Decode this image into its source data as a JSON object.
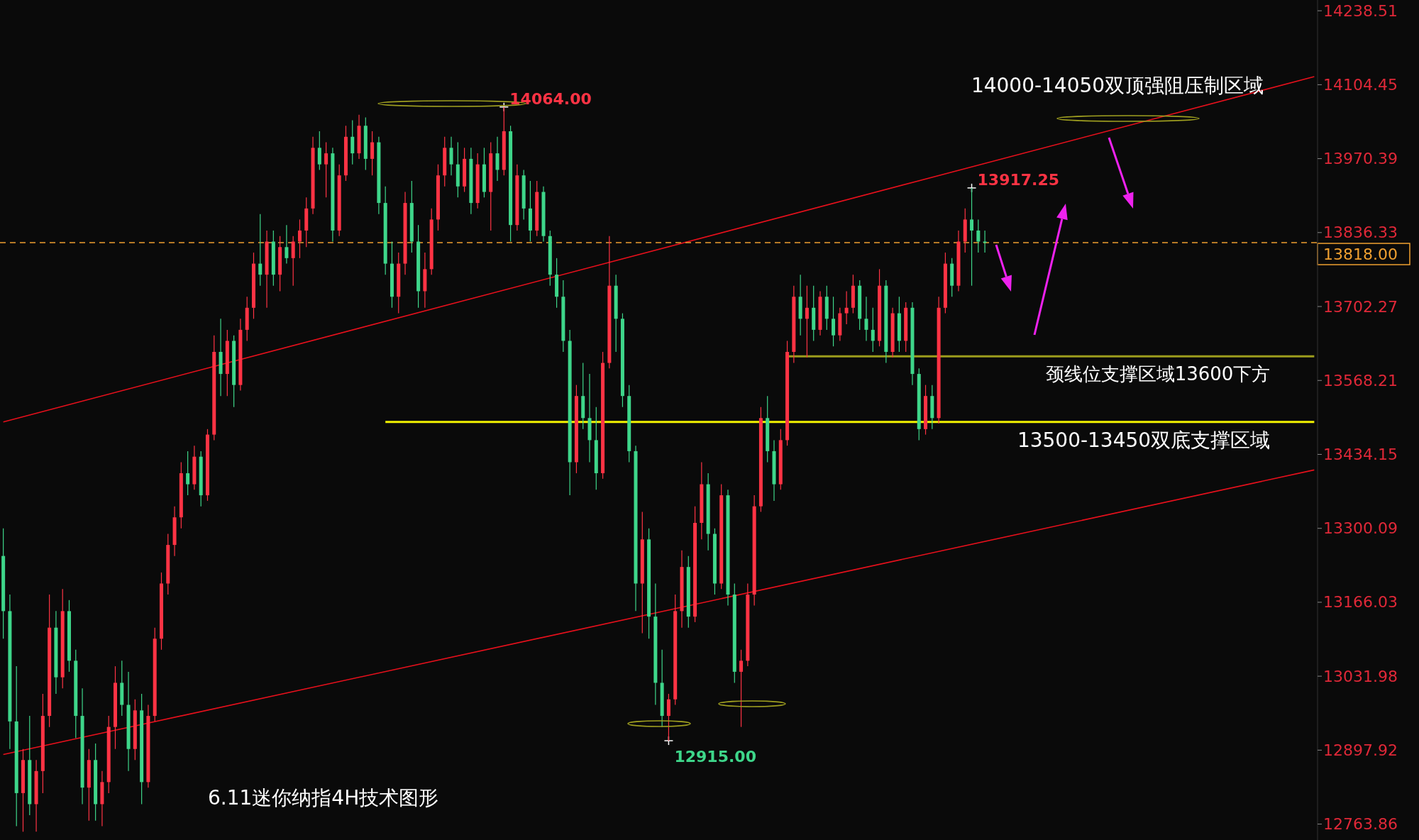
{
  "chart_data": {
    "type": "candlestick",
    "categories": [
      null,
      null,
      null,
      null,
      null,
      null,
      null,
      null,
      null,
      null,
      null,
      null,
      null,
      null,
      null,
      null,
      null,
      null,
      null,
      null,
      null,
      null,
      null,
      null,
      null,
      null,
      null,
      null,
      null,
      null,
      null,
      null,
      null,
      null,
      null,
      null,
      null,
      null,
      null,
      null,
      null,
      null,
      null,
      null,
      null,
      null,
      null,
      null,
      null,
      null,
      null,
      null,
      null,
      null,
      null,
      null,
      null,
      null,
      null,
      null,
      null,
      null,
      null,
      null,
      null,
      null,
      null,
      null,
      null,
      null,
      null,
      null,
      null,
      null,
      null,
      null,
      null,
      null,
      null,
      null,
      null,
      null,
      null,
      null,
      null,
      null,
      null,
      null,
      null,
      null,
      null,
      null,
      null,
      null,
      null,
      null,
      null,
      null,
      null,
      null,
      null,
      null,
      null,
      null,
      null,
      null,
      null,
      null,
      null,
      null,
      null,
      null,
      null,
      null,
      null,
      null,
      null,
      null,
      null,
      null,
      null,
      null,
      null,
      null,
      null,
      null,
      null,
      null,
      null,
      null,
      null,
      null,
      null,
      null,
      null,
      null,
      null,
      null,
      null,
      null,
      null,
      null,
      null,
      null,
      null,
      null,
      null,
      null,
      null,
      null,
      null,
      null,
      null,
      null,
      null,
      null,
      null,
      null,
      null,
      null,
      null,
      null,
      null,
      null,
      null,
      null,
      null,
      null,
      null,
      null,
      null,
      null,
      null,
      null,
      null,
      null,
      null,
      null,
      null,
      null,
      null,
      null,
      null,
      null,
      null,
      null,
      null,
      null,
      null,
      null,
      null,
      null,
      null,
      null,
      null,
      null,
      null,
      null,
      null,
      null
    ],
    "ohlc": [
      [
        13250,
        13300,
        13100,
        13150
      ],
      [
        13150,
        13180,
        12900,
        12950
      ],
      [
        12950,
        13050,
        12760,
        12820
      ],
      [
        12820,
        12900,
        12750,
        12880
      ],
      [
        12880,
        12960,
        12780,
        12800
      ],
      [
        12800,
        12880,
        12750,
        12860
      ],
      [
        12860,
        13000,
        12820,
        12960
      ],
      [
        12960,
        13180,
        12940,
        13120
      ],
      [
        13120,
        13150,
        13000,
        13030
      ],
      [
        13030,
        13190,
        13010,
        13150
      ],
      [
        13150,
        13170,
        13040,
        13060
      ],
      [
        13060,
        13080,
        12920,
        12960
      ],
      [
        12960,
        13010,
        12800,
        12830
      ],
      [
        12830,
        12900,
        12770,
        12880
      ],
      [
        12880,
        12910,
        12770,
        12800
      ],
      [
        12800,
        12860,
        12760,
        12840
      ],
      [
        12840,
        12960,
        12820,
        12940
      ],
      [
        12940,
        13050,
        12900,
        13020
      ],
      [
        13020,
        13060,
        12960,
        12980
      ],
      [
        12980,
        13040,
        12860,
        12900
      ],
      [
        12900,
        12990,
        12880,
        12970
      ],
      [
        12970,
        13000,
        12800,
        12840
      ],
      [
        12840,
        12980,
        12830,
        12960
      ],
      [
        12960,
        13120,
        12950,
        13100
      ],
      [
        13100,
        13220,
        13080,
        13200
      ],
      [
        13200,
        13290,
        13180,
        13270
      ],
      [
        13270,
        13340,
        13250,
        13320
      ],
      [
        13320,
        13420,
        13300,
        13400
      ],
      [
        13400,
        13440,
        13360,
        13380
      ],
      [
        13380,
        13450,
        13370,
        13430
      ],
      [
        13430,
        13440,
        13340,
        13360
      ],
      [
        13360,
        13480,
        13350,
        13470
      ],
      [
        13470,
        13650,
        13460,
        13620
      ],
      [
        13620,
        13680,
        13540,
        13580
      ],
      [
        13580,
        13660,
        13540,
        13640
      ],
      [
        13640,
        13650,
        13520,
        13560
      ],
      [
        13560,
        13680,
        13550,
        13660
      ],
      [
        13660,
        13720,
        13640,
        13700
      ],
      [
        13700,
        13800,
        13680,
        13780
      ],
      [
        13780,
        13870,
        13740,
        13760
      ],
      [
        13760,
        13840,
        13700,
        13820
      ],
      [
        13820,
        13840,
        13740,
        13760
      ],
      [
        13760,
        13830,
        13730,
        13810
      ],
      [
        13810,
        13850,
        13780,
        13790
      ],
      [
        13790,
        13830,
        13740,
        13820
      ],
      [
        13820,
        13860,
        13790,
        13840
      ],
      [
        13840,
        13900,
        13810,
        13880
      ],
      [
        13880,
        14010,
        13870,
        13990
      ],
      [
        13990,
        14020,
        13950,
        13960
      ],
      [
        13960,
        14000,
        13900,
        13980
      ],
      [
        13980,
        13990,
        13820,
        13840
      ],
      [
        13840,
        13960,
        13830,
        13940
      ],
      [
        13940,
        14030,
        13930,
        14010
      ],
      [
        14010,
        14040,
        13960,
        13980
      ],
      [
        13980,
        14050,
        13970,
        14030
      ],
      [
        14030,
        14045,
        13950,
        13970
      ],
      [
        13970,
        14020,
        13940,
        14000
      ],
      [
        14000,
        14010,
        13870,
        13890
      ],
      [
        13890,
        13920,
        13760,
        13780
      ],
      [
        13780,
        13820,
        13700,
        13720
      ],
      [
        13720,
        13800,
        13690,
        13780
      ],
      [
        13780,
        13910,
        13760,
        13890
      ],
      [
        13890,
        13930,
        13800,
        13820
      ],
      [
        13820,
        13850,
        13700,
        13730
      ],
      [
        13730,
        13800,
        13700,
        13770
      ],
      [
        13770,
        13880,
        13760,
        13860
      ],
      [
        13860,
        13960,
        13840,
        13940
      ],
      [
        13940,
        14010,
        13920,
        13990
      ],
      [
        13990,
        14010,
        13940,
        13960
      ],
      [
        13960,
        14000,
        13900,
        13920
      ],
      [
        13920,
        13990,
        13910,
        13970
      ],
      [
        13970,
        13990,
        13870,
        13890
      ],
      [
        13890,
        13980,
        13880,
        13960
      ],
      [
        13960,
        13990,
        13900,
        13910
      ],
      [
        13910,
        14000,
        13840,
        13980
      ],
      [
        13980,
        14010,
        13930,
        13950
      ],
      [
        13950,
        14064,
        13940,
        14020
      ],
      [
        14020,
        14030,
        13820,
        13850
      ],
      [
        13850,
        13960,
        13840,
        13940
      ],
      [
        13940,
        13950,
        13860,
        13880
      ],
      [
        13880,
        13930,
        13820,
        13840
      ],
      [
        13840,
        13930,
        13830,
        13910
      ],
      [
        13910,
        13920,
        13820,
        13830
      ],
      [
        13830,
        13840,
        13740,
        13760
      ],
      [
        13760,
        13790,
        13700,
        13720
      ],
      [
        13720,
        13750,
        13620,
        13640
      ],
      [
        13640,
        13660,
        13360,
        13420
      ],
      [
        13420,
        13560,
        13400,
        13540
      ],
      [
        13540,
        13600,
        13480,
        13500
      ],
      [
        13500,
        13580,
        13420,
        13460
      ],
      [
        13460,
        13520,
        13370,
        13400
      ],
      [
        13400,
        13620,
        13390,
        13600
      ],
      [
        13600,
        13830,
        13590,
        13740
      ],
      [
        13740,
        13760,
        13620,
        13680
      ],
      [
        13680,
        13690,
        13520,
        13540
      ],
      [
        13540,
        13560,
        13420,
        13440
      ],
      [
        13440,
        13450,
        13150,
        13200
      ],
      [
        13200,
        13330,
        13110,
        13280
      ],
      [
        13280,
        13300,
        13100,
        13140
      ],
      [
        13140,
        13200,
        12980,
        13020
      ],
      [
        13020,
        13080,
        12940,
        12960
      ],
      [
        12960,
        13000,
        12915,
        12990
      ],
      [
        12990,
        13180,
        12980,
        13150
      ],
      [
        13150,
        13260,
        13120,
        13230
      ],
      [
        13230,
        13250,
        13120,
        13140
      ],
      [
        13140,
        13340,
        13130,
        13310
      ],
      [
        13310,
        13420,
        13280,
        13380
      ],
      [
        13380,
        13400,
        13260,
        13290
      ],
      [
        13290,
        13300,
        13180,
        13200
      ],
      [
        13200,
        13380,
        13190,
        13360
      ],
      [
        13360,
        13370,
        13160,
        13180
      ],
      [
        13180,
        13200,
        13020,
        13040
      ],
      [
        13040,
        13080,
        12940,
        13060
      ],
      [
        13060,
        13200,
        13050,
        13180
      ],
      [
        13180,
        13360,
        13160,
        13340
      ],
      [
        13340,
        13520,
        13330,
        13500
      ],
      [
        13500,
        13540,
        13420,
        13440
      ],
      [
        13440,
        13460,
        13350,
        13380
      ],
      [
        13380,
        13480,
        13370,
        13460
      ],
      [
        13460,
        13640,
        13450,
        13620
      ],
      [
        13620,
        13740,
        13600,
        13720
      ],
      [
        13720,
        13760,
        13650,
        13680
      ],
      [
        13680,
        13740,
        13610,
        13700
      ],
      [
        13700,
        13740,
        13640,
        13660
      ],
      [
        13660,
        13730,
        13650,
        13720
      ],
      [
        13720,
        13740,
        13660,
        13680
      ],
      [
        13680,
        13720,
        13630,
        13650
      ],
      [
        13650,
        13700,
        13640,
        13690
      ],
      [
        13690,
        13730,
        13670,
        13700
      ],
      [
        13700,
        13760,
        13690,
        13740
      ],
      [
        13740,
        13750,
        13660,
        13680
      ],
      [
        13680,
        13720,
        13640,
        13660
      ],
      [
        13660,
        13700,
        13620,
        13640
      ],
      [
        13640,
        13770,
        13630,
        13740
      ],
      [
        13740,
        13750,
        13600,
        13620
      ],
      [
        13620,
        13700,
        13610,
        13690
      ],
      [
        13690,
        13720,
        13620,
        13640
      ],
      [
        13640,
        13710,
        13620,
        13700
      ],
      [
        13700,
        13710,
        13560,
        13580
      ],
      [
        13580,
        13590,
        13460,
        13480
      ],
      [
        13480,
        13560,
        13470,
        13540
      ],
      [
        13540,
        13560,
        13480,
        13500
      ],
      [
        13500,
        13720,
        13490,
        13700
      ],
      [
        13700,
        13800,
        13690,
        13780
      ],
      [
        13780,
        13790,
        13720,
        13740
      ],
      [
        13740,
        13840,
        13730,
        13820
      ],
      [
        13820,
        13880,
        13800,
        13860
      ],
      [
        13860,
        13917.25,
        13740,
        13840
      ],
      [
        13840,
        13860,
        13800,
        13820
      ],
      [
        13820,
        13840,
        13800,
        13818
      ],
      null,
      null,
      null,
      null,
      null,
      null,
      null,
      null,
      null,
      null,
      null,
      null,
      null,
      null,
      null,
      null,
      null,
      null,
      null,
      null,
      null,
      null,
      null,
      null,
      null,
      null,
      null,
      null,
      null,
      null,
      null,
      null,
      null,
      null,
      null,
      null,
      null,
      null,
      null,
      null,
      null,
      null,
      null,
      null,
      null,
      null,
      null,
      null,
      null,
      null
    ],
    "series": [
      {
        "type": "line",
        "color": "#e8101c",
        "values": [
          13493,
          null,
          null,
          null,
          null,
          null,
          null,
          null,
          null,
          null,
          null,
          null,
          null,
          null,
          null,
          null,
          null,
          null,
          null,
          null,
          null,
          null,
          null,
          null,
          null,
          null,
          null,
          null,
          null,
          null,
          null,
          null,
          null,
          null,
          null,
          null,
          null,
          null,
          null,
          null,
          null,
          null,
          null,
          null,
          null,
          null,
          null,
          null,
          null,
          null,
          null,
          null,
          null,
          null,
          null,
          null,
          null,
          null,
          null,
          null,
          null,
          null,
          null,
          null,
          null,
          null,
          null,
          null,
          null,
          null,
          null,
          null,
          null,
          null,
          null,
          null,
          null,
          null,
          null,
          null,
          null,
          null,
          null,
          null,
          null,
          null,
          null,
          null,
          null,
          null,
          null,
          null,
          null,
          null,
          null,
          null,
          null,
          null,
          null,
          null,
          null,
          null,
          null,
          null,
          null,
          null,
          null,
          null,
          null,
          null,
          null,
          null,
          null,
          null,
          null,
          null,
          null,
          null,
          null,
          null,
          null,
          null,
          null,
          null,
          null,
          null,
          null,
          null,
          null,
          null,
          null,
          null,
          null,
          null,
          null,
          null,
          null,
          null,
          null,
          null,
          null,
          null,
          null,
          null,
          null,
          null,
          null,
          null,
          null,
          null,
          null,
          null,
          null,
          null,
          null,
          null,
          null,
          null,
          null,
          null,
          null,
          null,
          null,
          null,
          null,
          null,
          null,
          null,
          null,
          null,
          null,
          null,
          null,
          null,
          null,
          null,
          null,
          null,
          null,
          null,
          null,
          null,
          null,
          null,
          null,
          null,
          null,
          null,
          null,
          null,
          null,
          null,
          null,
          null,
          null,
          null,
          null,
          null,
          null,
          14119
        ]
      },
      {
        "type": "line",
        "color": "#e8101c",
        "values": [
          12890,
          null,
          null,
          null,
          null,
          null,
          null,
          null,
          null,
          null,
          null,
          null,
          null,
          null,
          null,
          null,
          null,
          null,
          null,
          null,
          null,
          null,
          null,
          null,
          null,
          null,
          null,
          null,
          null,
          null,
          null,
          null,
          null,
          null,
          null,
          null,
          null,
          null,
          null,
          null,
          null,
          null,
          null,
          null,
          null,
          null,
          null,
          null,
          null,
          null,
          null,
          null,
          null,
          null,
          null,
          null,
          null,
          null,
          null,
          null,
          null,
          null,
          null,
          null,
          null,
          null,
          null,
          null,
          null,
          null,
          null,
          null,
          null,
          null,
          null,
          null,
          null,
          null,
          null,
          null,
          null,
          null,
          null,
          null,
          null,
          null,
          null,
          null,
          null,
          null,
          null,
          null,
          null,
          null,
          null,
          null,
          null,
          null,
          null,
          null,
          null,
          null,
          null,
          null,
          null,
          null,
          null,
          null,
          null,
          null,
          null,
          null,
          null,
          null,
          null,
          null,
          null,
          null,
          null,
          null,
          null,
          null,
          null,
          null,
          null,
          null,
          null,
          null,
          null,
          null,
          null,
          null,
          null,
          null,
          null,
          null,
          null,
          null,
          null,
          null,
          null,
          null,
          null,
          null,
          null,
          null,
          null,
          null,
          null,
          null,
          null,
          null,
          null,
          null,
          null,
          null,
          null,
          null,
          null,
          null,
          null,
          null,
          null,
          null,
          null,
          null,
          null,
          null,
          null,
          null,
          null,
          null,
          null,
          null,
          null,
          null,
          null,
          null,
          null,
          null,
          null,
          null,
          null,
          null,
          null,
          null,
          null,
          null,
          null,
          null,
          null,
          null,
          null,
          null,
          null,
          null,
          null,
          null,
          null,
          13406
        ]
      },
      {
        "type": "line",
        "color": "#f2f200",
        "values": [
          null,
          null,
          null,
          null,
          null,
          null,
          null,
          null,
          null,
          null,
          null,
          null,
          null,
          null,
          null,
          null,
          null,
          null,
          null,
          null,
          null,
          null,
          null,
          null,
          null,
          null,
          null,
          null,
          null,
          null,
          null,
          null,
          null,
          null,
          null,
          null,
          null,
          null,
          null,
          null,
          null,
          null,
          null,
          null,
          null,
          null,
          null,
          null,
          null,
          null,
          null,
          null,
          null,
          null,
          null,
          null,
          null,
          null,
          13493,
          null,
          null,
          null,
          null,
          null,
          null,
          null,
          null,
          null,
          null,
          null,
          null,
          null,
          null,
          null,
          null,
          null,
          null,
          null,
          null,
          null,
          null,
          null,
          null,
          null,
          null,
          null,
          null,
          null,
          null,
          null,
          null,
          null,
          null,
          null,
          null,
          null,
          null,
          null,
          null,
          null,
          null,
          null,
          null,
          null,
          null,
          null,
          null,
          null,
          null,
          null,
          null,
          null,
          null,
          null,
          null,
          null,
          null,
          null,
          null,
          null,
          null,
          null,
          null,
          null,
          null,
          null,
          null,
          null,
          null,
          null,
          null,
          null,
          null,
          null,
          null,
          null,
          null,
          null,
          null,
          null,
          null,
          null,
          null,
          null,
          null,
          null,
          null,
          null,
          null,
          null,
          null,
          null,
          null,
          null,
          null,
          null,
          null,
          null,
          null,
          null,
          null,
          null,
          null,
          null,
          null,
          null,
          null,
          null,
          null,
          null,
          null,
          null,
          null,
          null,
          null,
          null,
          null,
          null,
          null,
          null,
          null,
          null,
          null,
          null,
          null,
          null,
          null,
          null,
          null,
          null,
          null,
          null,
          null,
          null,
          null,
          null,
          null,
          null,
          null,
          13493
        ]
      },
      {
        "type": "line",
        "color": "#9c9c1c",
        "values": [
          null,
          null,
          null,
          null,
          null,
          null,
          null,
          null,
          null,
          null,
          null,
          null,
          null,
          null,
          null,
          null,
          null,
          null,
          null,
          null,
          null,
          null,
          null,
          null,
          null,
          null,
          null,
          null,
          null,
          null,
          null,
          null,
          null,
          null,
          null,
          null,
          null,
          null,
          null,
          null,
          null,
          null,
          null,
          null,
          null,
          null,
          null,
          null,
          null,
          null,
          null,
          null,
          null,
          null,
          null,
          null,
          null,
          null,
          null,
          null,
          null,
          null,
          null,
          null,
          null,
          null,
          null,
          null,
          null,
          null,
          null,
          null,
          null,
          null,
          null,
          null,
          null,
          null,
          null,
          null,
          null,
          null,
          null,
          null,
          null,
          null,
          null,
          null,
          null,
          null,
          null,
          null,
          null,
          null,
          null,
          null,
          null,
          null,
          null,
          null,
          null,
          null,
          null,
          null,
          null,
          null,
          null,
          null,
          null,
          null,
          null,
          null,
          null,
          null,
          null,
          null,
          null,
          null,
          null,
          13612,
          null,
          null,
          null,
          null,
          null,
          null,
          null,
          null,
          null,
          null,
          null,
          null,
          null,
          null,
          null,
          null,
          null,
          null,
          null,
          null,
          null,
          null,
          null,
          null,
          null,
          null,
          null,
          null,
          null,
          null,
          null,
          null,
          null,
          null,
          null,
          null,
          null,
          null,
          null,
          null,
          null,
          null,
          null,
          null,
          null,
          null,
          null,
          null,
          null,
          null,
          null,
          null,
          null,
          null,
          null,
          null,
          null,
          null,
          null,
          null,
          null,
          null,
          null,
          null,
          null,
          null,
          null,
          null,
          null,
          null,
          null,
          null,
          null,
          null,
          null,
          null,
          null,
          null,
          null,
          13612
        ]
      }
    ],
    "ylim": [
      12735,
      14258
    ],
    "yticks": [
      14238.51,
      14104.45,
      13970.39,
      13836.33,
      13702.27,
      13568.21,
      13434.15,
      13300.09,
      13166.03,
      13031.98,
      12897.92,
      12763.86
    ],
    "tick_labels": "y",
    "ref_lines": [
      {
        "axis": "y",
        "value": 13818,
        "label": "13818.00",
        "color": "#f0a030",
        "line_style": "dashed"
      }
    ],
    "annotations": [
      "14064.00",
      "13917.25",
      "12915.00",
      "14000-14050双顶强阻压制区域",
      "颈线位支撑区域13600下方",
      "13500-13450双底支撑区域",
      "6.11迷你纳指4H技术图形"
    ]
  }
}
